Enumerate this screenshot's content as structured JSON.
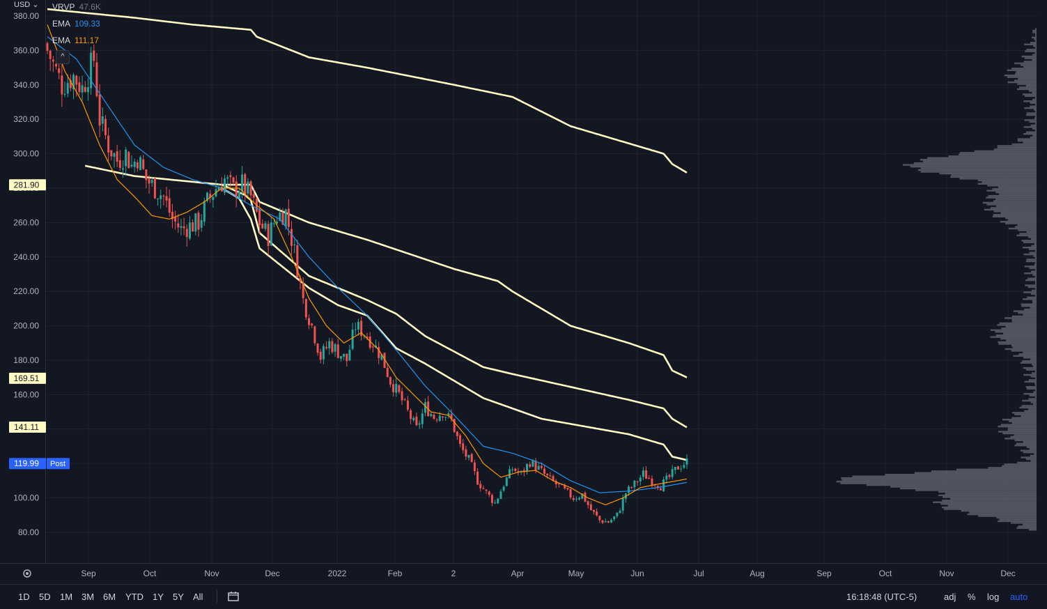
{
  "currency": "USD",
  "legend": {
    "vrvp": {
      "label": "VRVP",
      "value": "47.6K",
      "color": "#787b86"
    },
    "ema1": {
      "label": "EMA",
      "value": "109.33",
      "color": "#2196f3"
    },
    "ema2": {
      "label": "EMA",
      "value": "111.17",
      "color": "#ff9800"
    }
  },
  "price_badges": [
    {
      "value": "281.90",
      "bg": "#fff9c4"
    },
    {
      "value": "169.51",
      "bg": "#fff9c4"
    },
    {
      "value": "141.11",
      "bg": "#fff9c4"
    },
    {
      "value": "119.99",
      "bg": "#2962ff",
      "extra": "Post"
    }
  ],
  "toolbar": {
    "ranges": [
      "1D",
      "5D",
      "1M",
      "3M",
      "6M",
      "YTD",
      "1Y",
      "5Y",
      "All"
    ],
    "time": "16:18:48 (UTC-5)",
    "adj": "adj",
    "percent": "%",
    "log": "log",
    "auto": "auto"
  },
  "chart_data": {
    "type": "candlestick",
    "y_ticks": [
      "380.00",
      "360.00",
      "340.00",
      "320.00",
      "300.00",
      "280.00",
      "260.00",
      "240.00",
      "220.00",
      "200.00",
      "180.00",
      "160.00",
      "140.00",
      "120.00",
      "100.00",
      "80.00"
    ],
    "y_tick_values": [
      380,
      360,
      340,
      320,
      300,
      280,
      260,
      240,
      220,
      200,
      180,
      160,
      140,
      120,
      100,
      80
    ],
    "x_ticks": [
      "Sep",
      "Oct",
      "Nov",
      "Dec",
      "2022",
      "Feb",
      "2",
      "Apr",
      "May",
      "Jun",
      "Jul",
      "Aug",
      "Sep",
      "Oct",
      "Nov",
      "Dec"
    ],
    "ylim": [
      70,
      390
    ],
    "grid": true,
    "close_anchors": [
      [
        0,
        360
      ],
      [
        5,
        340
      ],
      [
        9,
        345
      ],
      [
        12,
        338
      ],
      [
        16,
        355
      ],
      [
        18,
        320
      ],
      [
        21,
        305
      ],
      [
        24,
        296
      ],
      [
        27,
        300
      ],
      [
        29,
        293
      ],
      [
        31,
        298
      ],
      [
        34,
        285
      ],
      [
        37,
        280
      ],
      [
        40,
        275
      ],
      [
        43,
        262
      ],
      [
        46,
        256
      ],
      [
        49,
        258
      ],
      [
        52,
        260
      ],
      [
        55,
        272
      ],
      [
        58,
        280
      ],
      [
        61,
        285
      ],
      [
        64,
        279
      ],
      [
        67,
        282
      ],
      [
        70,
        275
      ],
      [
        73,
        260
      ],
      [
        76,
        252
      ],
      [
        79,
        264
      ],
      [
        82,
        266
      ],
      [
        85,
        243
      ],
      [
        88,
        215
      ],
      [
        91,
        200
      ],
      [
        94,
        182
      ],
      [
        97,
        190
      ],
      [
        100,
        185
      ],
      [
        103,
        180
      ],
      [
        106,
        200
      ],
      [
        109,
        196
      ],
      [
        112,
        190
      ],
      [
        115,
        182
      ],
      [
        118,
        168
      ],
      [
        121,
        160
      ],
      [
        124,
        150
      ],
      [
        127,
        140
      ],
      [
        130,
        153
      ],
      [
        133,
        147
      ],
      [
        136,
        150
      ],
      [
        139,
        145
      ],
      [
        142,
        130
      ],
      [
        145,
        122
      ],
      [
        148,
        110
      ],
      [
        151,
        103
      ],
      [
        154,
        97
      ],
      [
        157,
        108
      ],
      [
        160,
        117
      ],
      [
        163,
        114
      ],
      [
        166,
        121
      ],
      [
        169,
        117
      ],
      [
        172,
        112
      ],
      [
        175,
        108
      ],
      [
        178,
        104
      ],
      [
        181,
        100
      ],
      [
        184,
        102
      ],
      [
        187,
        93
      ],
      [
        190,
        87
      ],
      [
        193,
        86
      ],
      [
        196,
        90
      ],
      [
        199,
        103
      ],
      [
        202,
        108
      ],
      [
        205,
        114
      ],
      [
        208,
        110
      ],
      [
        211,
        107
      ],
      [
        214,
        112
      ],
      [
        217,
        118
      ],
      [
        220,
        121
      ]
    ],
    "ema_blue": [
      [
        0,
        368
      ],
      [
        10,
        355
      ],
      [
        20,
        330
      ],
      [
        30,
        305
      ],
      [
        40,
        292
      ],
      [
        50,
        285
      ],
      [
        60,
        280
      ],
      [
        70,
        270
      ],
      [
        80,
        262
      ],
      [
        90,
        240
      ],
      [
        100,
        222
      ],
      [
        110,
        206
      ],
      [
        120,
        186
      ],
      [
        130,
        165
      ],
      [
        140,
        148
      ],
      [
        150,
        130
      ],
      [
        160,
        126
      ],
      [
        170,
        120
      ],
      [
        180,
        110
      ],
      [
        190,
        103
      ],
      [
        200,
        104
      ],
      [
        210,
        106
      ],
      [
        220,
        109
      ]
    ],
    "ema_orange": [
      [
        0,
        375
      ],
      [
        6,
        348
      ],
      [
        12,
        330
      ],
      [
        18,
        305
      ],
      [
        24,
        285
      ],
      [
        30,
        275
      ],
      [
        36,
        264
      ],
      [
        42,
        262
      ],
      [
        48,
        266
      ],
      [
        54,
        272
      ],
      [
        60,
        280
      ],
      [
        66,
        280
      ],
      [
        72,
        270
      ],
      [
        78,
        262
      ],
      [
        84,
        240
      ],
      [
        90,
        216
      ],
      [
        96,
        200
      ],
      [
        102,
        190
      ],
      [
        108,
        196
      ],
      [
        114,
        186
      ],
      [
        120,
        170
      ],
      [
        126,
        160
      ],
      [
        132,
        150
      ],
      [
        138,
        148
      ],
      [
        144,
        136
      ],
      [
        150,
        120
      ],
      [
        156,
        112
      ],
      [
        162,
        115
      ],
      [
        168,
        116
      ],
      [
        174,
        110
      ],
      [
        180,
        106
      ],
      [
        186,
        100
      ],
      [
        192,
        96
      ],
      [
        198,
        100
      ],
      [
        204,
        106
      ],
      [
        210,
        108
      ],
      [
        220,
        111
      ]
    ],
    "bands": [
      [
        [
          0,
          384
        ],
        [
          30,
          379
        ],
        [
          50,
          375
        ],
        [
          70,
          372
        ],
        [
          72,
          368
        ],
        [
          90,
          356
        ],
        [
          110,
          350
        ],
        [
          140,
          340
        ],
        [
          160,
          333
        ],
        [
          180,
          316
        ],
        [
          200,
          306
        ],
        [
          212,
          300
        ],
        [
          215,
          294
        ],
        [
          220,
          289
        ]
      ],
      [
        [
          13,
          293
        ],
        [
          30,
          287
        ],
        [
          60,
          282
        ],
        [
          70,
          282
        ],
        [
          73,
          272
        ],
        [
          90,
          260
        ],
        [
          110,
          250
        ],
        [
          140,
          233
        ],
        [
          155,
          226
        ],
        [
          160,
          220
        ],
        [
          180,
          200
        ],
        [
          200,
          190
        ],
        [
          212,
          183
        ],
        [
          215,
          174
        ],
        [
          220,
          170
        ]
      ],
      [
        [
          60,
          282
        ],
        [
          68,
          276
        ],
        [
          70,
          273
        ],
        [
          73,
          254
        ],
        [
          90,
          229
        ],
        [
          110,
          215
        ],
        [
          120,
          207
        ],
        [
          130,
          194
        ],
        [
          150,
          176
        ],
        [
          160,
          172
        ],
        [
          200,
          157
        ],
        [
          212,
          152
        ],
        [
          215,
          146
        ],
        [
          220,
          141
        ]
      ],
      [
        [
          60,
          280
        ],
        [
          66,
          274
        ],
        [
          70,
          262
        ],
        [
          73,
          245
        ],
        [
          90,
          222
        ],
        [
          100,
          212
        ],
        [
          110,
          206
        ],
        [
          120,
          187
        ],
        [
          130,
          178
        ],
        [
          150,
          158
        ],
        [
          170,
          146
        ],
        [
          200,
          137
        ],
        [
          212,
          131
        ],
        [
          215,
          124
        ],
        [
          220,
          122
        ]
      ]
    ],
    "last_price": 119.99,
    "volume_profile": "visible range volume profile on right side"
  }
}
